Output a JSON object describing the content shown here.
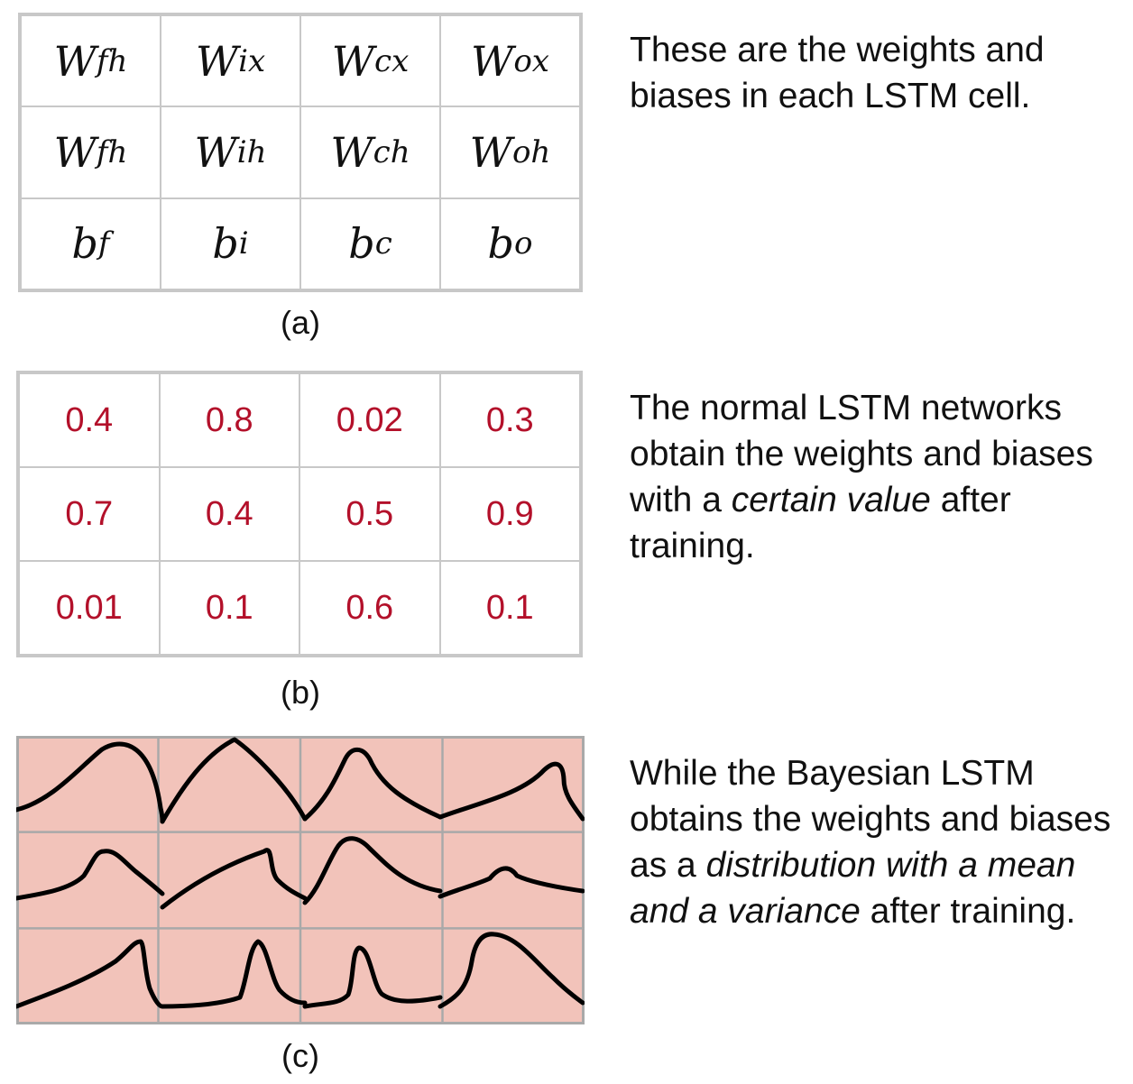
{
  "panel_a": {
    "caption": "(a)",
    "cells": [
      [
        {
          "base": "W",
          "sub": "fh"
        },
        {
          "base": "W",
          "sub": "ix"
        },
        {
          "base": "W",
          "sub": "cx"
        },
        {
          "base": "W",
          "sub": "ox"
        }
      ],
      [
        {
          "base": "W",
          "sub": "fh"
        },
        {
          "base": "W",
          "sub": "ih"
        },
        {
          "base": "W",
          "sub": "ch"
        },
        {
          "base": "W",
          "sub": "oh"
        }
      ],
      [
        {
          "base": "b",
          "sub": "f"
        },
        {
          "base": "b",
          "sub": "i"
        },
        {
          "base": "b",
          "sub": "c"
        },
        {
          "base": "b",
          "sub": "o"
        }
      ]
    ],
    "description": "These are the weights and biases in each LSTM cell."
  },
  "panel_b": {
    "caption": "(b)",
    "values": [
      [
        "0.4",
        "0.8",
        "0.02",
        "0.3"
      ],
      [
        "0.7",
        "0.4",
        "0.5",
        "0.9"
      ],
      [
        "0.01",
        "0.1",
        "0.6",
        "0.1"
      ]
    ],
    "value_color": "#b3102a",
    "description": {
      "before": "The normal LSTM networks obtain the weights and biases with a ",
      "emphasis": "certain value",
      "after": " after training."
    }
  },
  "panel_c": {
    "caption": "(c)",
    "fill_color": "#f2c3ba",
    "description": {
      "before": "While the Bayesian LSTM obtains the weights and biases as a ",
      "emphasis": "distribution with a mean and a variance",
      "after": " after training."
    }
  }
}
